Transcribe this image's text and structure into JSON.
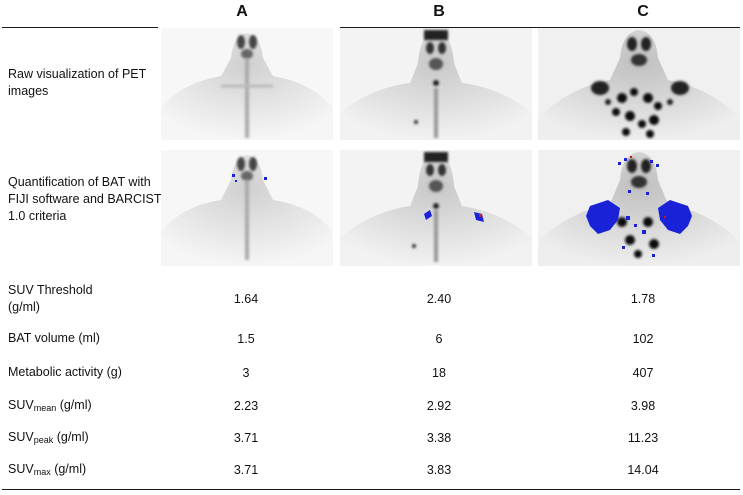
{
  "columns": [
    "A",
    "B",
    "C"
  ],
  "row_labels": {
    "raw": "Raw visualization of PET images",
    "quant": "Quantification of BAT with FIJI software and BARCIST 1.0 criteria",
    "threshold": "SUV Threshold (g/ml)",
    "volume": "BAT volume (ml)",
    "activity": "Metabolic activity (g)",
    "suvmean_main": "SUV",
    "suvmean_sub": "mean",
    "suvmean_unit": " (g/ml)",
    "suvpeak_main": "SUV",
    "suvpeak_sub": "peak",
    "suvpeak_unit": " (g/ml)",
    "suvmax_main": "SUV",
    "suvmax_sub": "max",
    "suvmax_unit": " (g/ml)"
  },
  "values": {
    "threshold": [
      "1.64",
      "2.40",
      "1.78"
    ],
    "volume": [
      "1.5",
      "6",
      "102"
    ],
    "activity": [
      "3",
      "18",
      "407"
    ],
    "suvmean": [
      "2.23",
      "2.92",
      "3.98"
    ],
    "suvpeak": [
      "3.71",
      "3.38",
      "11.23"
    ],
    "suvmax": [
      "3.71",
      "3.83",
      "14.04"
    ]
  },
  "colors": {
    "bat_overlay": "#1a22d8",
    "bat_red": "#d01818",
    "rule": "#1a1a1a"
  }
}
